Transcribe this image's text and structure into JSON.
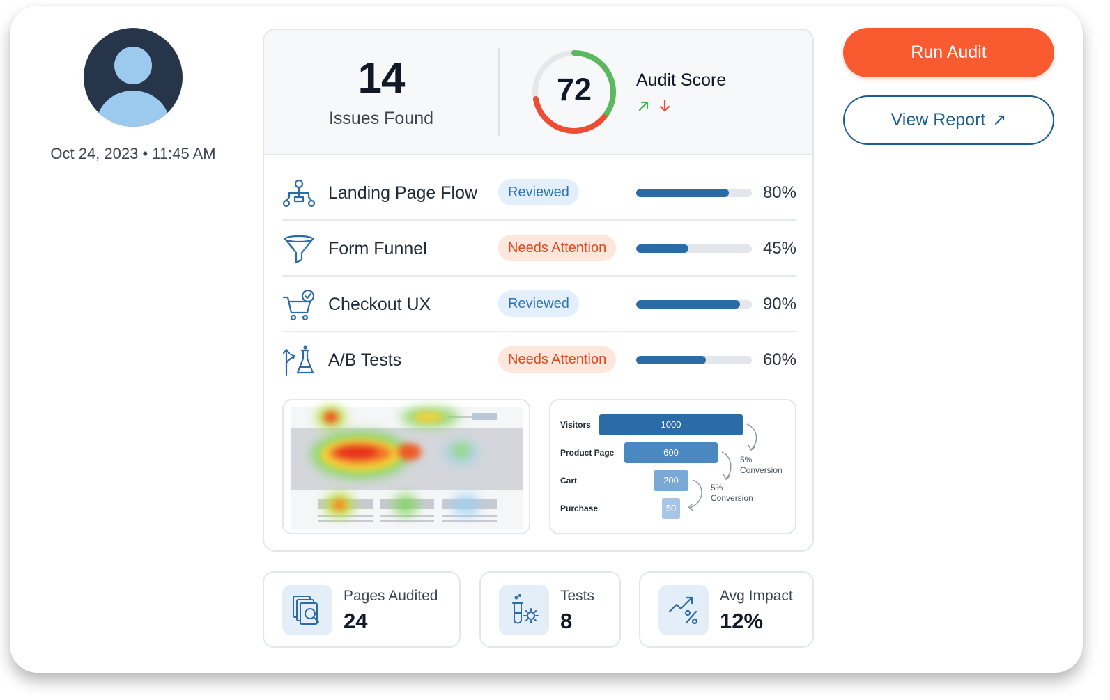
{
  "profile": {
    "timestamp": "Oct 24, 2023 • 11:45 AM"
  },
  "summary": {
    "issues_count": "14",
    "issues_label": "Issues Found",
    "score": "72",
    "score_label": "Audit Score",
    "score_fraction": 0.72,
    "colors": {
      "score_good": "#5cb85c",
      "score_bad": "#ef4c35",
      "track": "#e5e7eb"
    }
  },
  "audit_items": [
    {
      "name": "Landing Page Flow",
      "status": "Reviewed",
      "status_kind": "reviewed",
      "progress": 0.8,
      "progress_label": "80%",
      "icon": "flow-icon"
    },
    {
      "name": "Form Funnel",
      "status": "Needs Attention",
      "status_kind": "attention",
      "progress": 0.45,
      "progress_label": "45%",
      "icon": "funnel-icon"
    },
    {
      "name": "Checkout UX",
      "status": "Reviewed",
      "status_kind": "reviewed",
      "progress": 0.9,
      "progress_label": "90%",
      "icon": "cart-check-icon"
    },
    {
      "name": "A/B Tests",
      "status": "Needs Attention",
      "status_kind": "attention",
      "progress": 0.6,
      "progress_label": "60%",
      "icon": "flask-icon"
    }
  ],
  "funnel": {
    "stages": [
      {
        "label": "Visitors",
        "value": "1000"
      },
      {
        "label": "Product Page",
        "value": "600"
      },
      {
        "label": "Cart",
        "value": "200"
      },
      {
        "label": "Purchase",
        "value": "50"
      }
    ],
    "notes": [
      {
        "line1": "5%",
        "line2": "Conversion"
      },
      {
        "line1": "5%",
        "line2": "Conversion"
      }
    ]
  },
  "actions": {
    "run_audit": "Run Audit",
    "view_report": "View Report"
  },
  "stats": [
    {
      "label": "Pages Audited",
      "value": "24",
      "icon": "pages-search-icon"
    },
    {
      "label": "Tests",
      "value": "8",
      "icon": "test-tube-gear-icon"
    },
    {
      "label": "Avg Impact",
      "value": "12%",
      "icon": "trend-percent-icon"
    }
  ]
}
